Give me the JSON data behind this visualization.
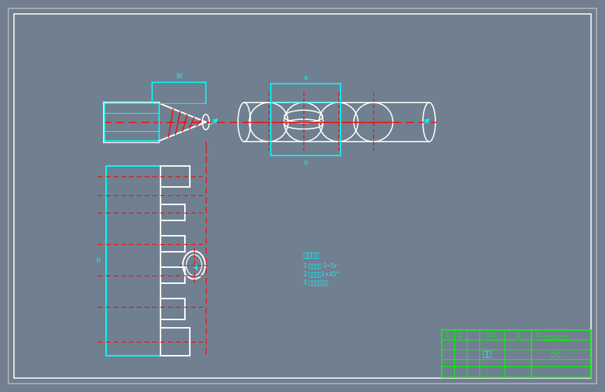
{
  "bg_outer": "#708090",
  "bg_inner": "#000000",
  "cyan": "#00ffff",
  "red": "#ff0000",
  "white": "#ffffff",
  "green": "#00ff00",
  "part_name": "机架",
  "title_text": "大学生方程式赛车",
  "drawing_no": "第1页"
}
